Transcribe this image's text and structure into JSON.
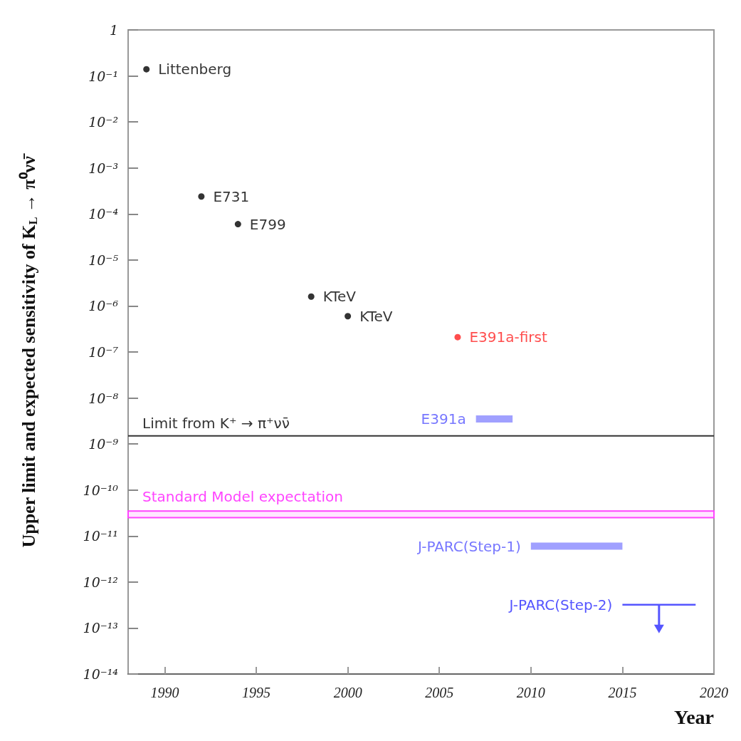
{
  "chart_data": {
    "type": "scatter",
    "xlabel": "Year",
    "ylabel": "Upper limit and expected sensitivity of K$_{L}$ → π⁰νν̄",
    "log": "y",
    "grid": false,
    "legend": false,
    "xlim": [
      1988,
      2020
    ],
    "xticks": [
      1990,
      1995,
      2000,
      2005,
      2010,
      2015,
      2020
    ],
    "ylim": [
      1e-14,
      1
    ],
    "yticks": [
      1,
      {
        "value": 0.1,
        "label": "10⁻¹"
      },
      {
        "value": 0.01,
        "label": "10⁻²"
      },
      {
        "value": 0.001,
        "label": "10⁻³"
      },
      {
        "value": 0.0001,
        "label": "10⁻⁴"
      },
      {
        "value": 1e-05,
        "label": "10⁻⁵"
      },
      {
        "value": 1e-06,
        "label": "10⁻⁶"
      },
      {
        "value": 1e-07,
        "label": "10⁻⁷"
      },
      {
        "value": 1e-08,
        "label": "10⁻⁸"
      },
      {
        "value": 1e-09,
        "label": "10⁻⁹"
      },
      {
        "value": 1e-10,
        "label": "10⁻¹⁰"
      },
      {
        "value": 1e-11,
        "label": "10⁻¹¹"
      },
      {
        "value": 1e-12,
        "label": "10⁻¹²"
      },
      {
        "value": 1e-13,
        "label": "10⁻¹³"
      },
      {
        "value": 1e-14,
        "label": "10⁻¹⁴"
      }
    ],
    "series": [
      {
        "name": "Littenberg",
        "color": "#000000",
        "marker": "circle",
        "x": [
          1989
        ],
        "values": [
          0.14
        ]
      },
      {
        "name": "E731",
        "color": "#000000",
        "marker": "circle",
        "x": [
          1992
        ],
        "values": [
          0.00024
        ]
      },
      {
        "name": "E799",
        "color": "#000000",
        "marker": "circle",
        "x": [
          1994
        ],
        "values": [
          6e-05
        ]
      },
      {
        "name": "KTeV",
        "color": "#000000",
        "marker": "circle",
        "x": [
          1998
        ],
        "values": [
          1.6e-06
        ]
      },
      {
        "name": "KTeV",
        "color": "#000000",
        "marker": "circle",
        "x": [
          2000
        ],
        "values": [
          6e-07
        ]
      },
      {
        "name": "E391a-first",
        "color": "#ff2020",
        "marker": "circle",
        "x": [
          2006
        ],
        "values": [
          2.1e-07
        ]
      },
      {
        "name": "E391a",
        "type": "line",
        "marker": "none",
        "color": "#7777ff",
        "x": [
          2007,
          2009
        ],
        "values": [
          3.5e-09,
          3.5e-09
        ]
      },
      {
        "name": "J-PARC(Step-1)",
        "type": "line",
        "marker": "none",
        "color": "#7777ff",
        "x": [
          2010,
          2015
        ],
        "values": [
          6e-12,
          6e-12
        ]
      },
      {
        "name": "J-PARC(Step-2)",
        "type": "line",
        "marker": "none",
        "color": "#5555ff",
        "x": [
          2015,
          2017,
          2019
        ],
        "values": [
          3.2e-13,
          3.2e-13,
          3.2e-13
        ]
      }
    ],
    "ref_lines": [
      {
        "axis": "y",
        "value": 1.5e-09,
        "label": "Limit from K⁺ → π⁺νν̄",
        "color": "#333333"
      }
    ],
    "bands": [
      {
        "axis": "y",
        "from": 2.5e-11,
        "to": 3.5e-11,
        "label": "Standard Model expectation",
        "color": "#ff44ff"
      }
    ]
  }
}
